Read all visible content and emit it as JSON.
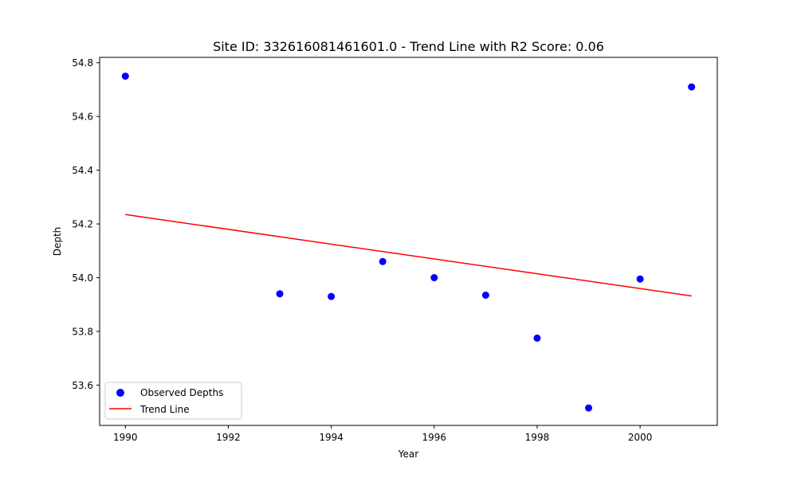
{
  "chart_data": {
    "type": "scatter",
    "title": "Site ID: 332616081461601.0 - Trend Line with R2 Score: 0.06",
    "xlabel": "Year",
    "ylabel": "Depth",
    "xlim": [
      1989.5,
      2001.5
    ],
    "ylim": [
      53.45,
      54.82
    ],
    "xticks": [
      1990,
      1992,
      1994,
      1996,
      1998,
      2000
    ],
    "xtick_labels": [
      "1990",
      "1992",
      "1994",
      "1996",
      "1998",
      "2000"
    ],
    "yticks": [
      53.6,
      53.8,
      54.0,
      54.2,
      54.4,
      54.6,
      54.8
    ],
    "ytick_labels": [
      "53.6",
      "53.8",
      "54.0",
      "54.2",
      "54.4",
      "54.6",
      "54.8"
    ],
    "grid": false,
    "legend_position": "lower-left",
    "series": [
      {
        "name": "Observed Depths",
        "kind": "scatter",
        "color": "#0000ff",
        "x": [
          1990,
          1993,
          1994,
          1995,
          1996,
          1997,
          1998,
          1999,
          2000,
          2001
        ],
        "y": [
          54.75,
          53.94,
          53.93,
          54.06,
          54.0,
          53.935,
          53.775,
          53.515,
          53.995,
          54.71
        ]
      },
      {
        "name": "Trend Line",
        "kind": "line",
        "color": "#ff0000",
        "x": [
          1990,
          2001
        ],
        "y": [
          54.235,
          53.932
        ]
      }
    ]
  }
}
